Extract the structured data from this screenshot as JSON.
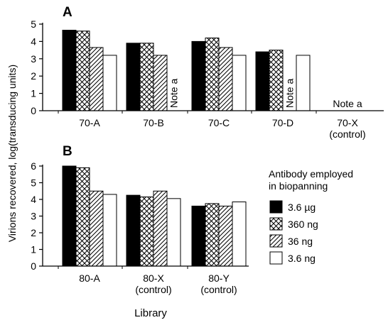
{
  "ylabel": "Virions recovered, log(transducing units)",
  "xlabel": "Library",
  "legend": {
    "title_lines": [
      "Antibody employed",
      "in biopanning"
    ],
    "items": [
      {
        "label": "3.6 µg",
        "pattern": "solid"
      },
      {
        "label": "360 ng",
        "pattern": "crosshatch"
      },
      {
        "label": "36 ng",
        "pattern": "diagonal"
      },
      {
        "label": "3.6 ng",
        "pattern": "open"
      }
    ]
  },
  "chart_data": [
    {
      "type": "bar",
      "panel_label": "A",
      "categories": [
        {
          "lines": [
            "70-A"
          ]
        },
        {
          "lines": [
            "70-B"
          ]
        },
        {
          "lines": [
            "70-C"
          ]
        },
        {
          "lines": [
            "70-D"
          ]
        },
        {
          "lines": [
            "70-X",
            "(control)"
          ]
        }
      ],
      "series": [
        {
          "name": "3.6 µg",
          "values": [
            4.65,
            3.9,
            4.0,
            3.4,
            null
          ]
        },
        {
          "name": "360 ng",
          "values": [
            4.6,
            3.9,
            4.2,
            3.5,
            null
          ]
        },
        {
          "name": "36 ng",
          "values": [
            3.65,
            3.2,
            3.65,
            null,
            null
          ]
        },
        {
          "name": "3.6 ng",
          "values": [
            3.2,
            null,
            3.2,
            3.2,
            null
          ]
        }
      ],
      "yticks": [
        0,
        1,
        2,
        3,
        4,
        5
      ],
      "ylim": [
        0,
        5
      ],
      "annotations": [
        {
          "text": "Note a",
          "category": 1,
          "series": 3,
          "orientation": "vertical"
        },
        {
          "text": "Note a",
          "category": 3,
          "series": 2,
          "orientation": "vertical"
        },
        {
          "text": "Note a",
          "category": 4,
          "orientation": "horizontal"
        }
      ]
    },
    {
      "type": "bar",
      "panel_label": "B",
      "categories": [
        {
          "lines": [
            "80-A"
          ]
        },
        {
          "lines": [
            "80-X",
            "(control)"
          ]
        },
        {
          "lines": [
            "80-Y",
            "(control)"
          ]
        }
      ],
      "series": [
        {
          "name": "3.6 µg",
          "values": [
            6.0,
            4.25,
            3.6
          ]
        },
        {
          "name": "360 ng",
          "values": [
            5.9,
            4.15,
            3.75
          ]
        },
        {
          "name": "36 ng",
          "values": [
            4.5,
            4.5,
            3.6
          ]
        },
        {
          "name": "3.6 ng",
          "values": [
            4.3,
            4.05,
            3.85
          ]
        }
      ],
      "yticks": [
        0,
        1,
        2,
        3,
        4,
        5,
        6
      ],
      "ylim": [
        0,
        6
      ],
      "annotations": []
    }
  ]
}
